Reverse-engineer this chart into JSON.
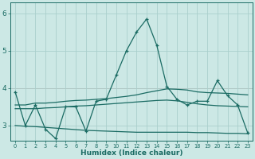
{
  "xlabel": "Humidex (Indice chaleur)",
  "background_color": "#cce8e5",
  "grid_color": "#aacfcc",
  "line_color": "#1a6b63",
  "xlim": [
    -0.5,
    23.5
  ],
  "ylim": [
    2.6,
    6.3
  ],
  "yticks": [
    3,
    4,
    5,
    6
  ],
  "xticks": [
    0,
    1,
    2,
    3,
    4,
    5,
    6,
    7,
    8,
    9,
    10,
    11,
    12,
    13,
    14,
    15,
    16,
    17,
    18,
    19,
    20,
    21,
    22,
    23
  ],
  "lines": [
    {
      "y": [
        3.9,
        3.0,
        3.55,
        2.9,
        2.65,
        3.5,
        3.5,
        2.85,
        3.65,
        3.7,
        4.35,
        5.0,
        5.5,
        5.85,
        5.15,
        4.05,
        3.7,
        3.55,
        3.65,
        3.65,
        4.2,
        3.8,
        3.55,
        2.8
      ],
      "marker": true
    },
    {
      "y": [
        3.55,
        3.55,
        3.6,
        3.6,
        3.62,
        3.65,
        3.67,
        3.68,
        3.7,
        3.72,
        3.75,
        3.78,
        3.82,
        3.88,
        3.93,
        3.98,
        3.97,
        3.95,
        3.9,
        3.88,
        3.87,
        3.86,
        3.84,
        3.82
      ],
      "marker": false
    },
    {
      "y": [
        3.45,
        3.45,
        3.45,
        3.47,
        3.48,
        3.5,
        3.52,
        3.53,
        3.55,
        3.57,
        3.59,
        3.61,
        3.63,
        3.65,
        3.67,
        3.68,
        3.66,
        3.62,
        3.58,
        3.55,
        3.53,
        3.52,
        3.51,
        3.5
      ],
      "marker": false
    },
    {
      "y": [
        3.0,
        2.98,
        2.97,
        2.95,
        2.93,
        2.91,
        2.89,
        2.87,
        2.86,
        2.85,
        2.84,
        2.83,
        2.82,
        2.82,
        2.82,
        2.82,
        2.82,
        2.82,
        2.81,
        2.81,
        2.8,
        2.79,
        2.79,
        2.78
      ],
      "marker": false
    }
  ]
}
